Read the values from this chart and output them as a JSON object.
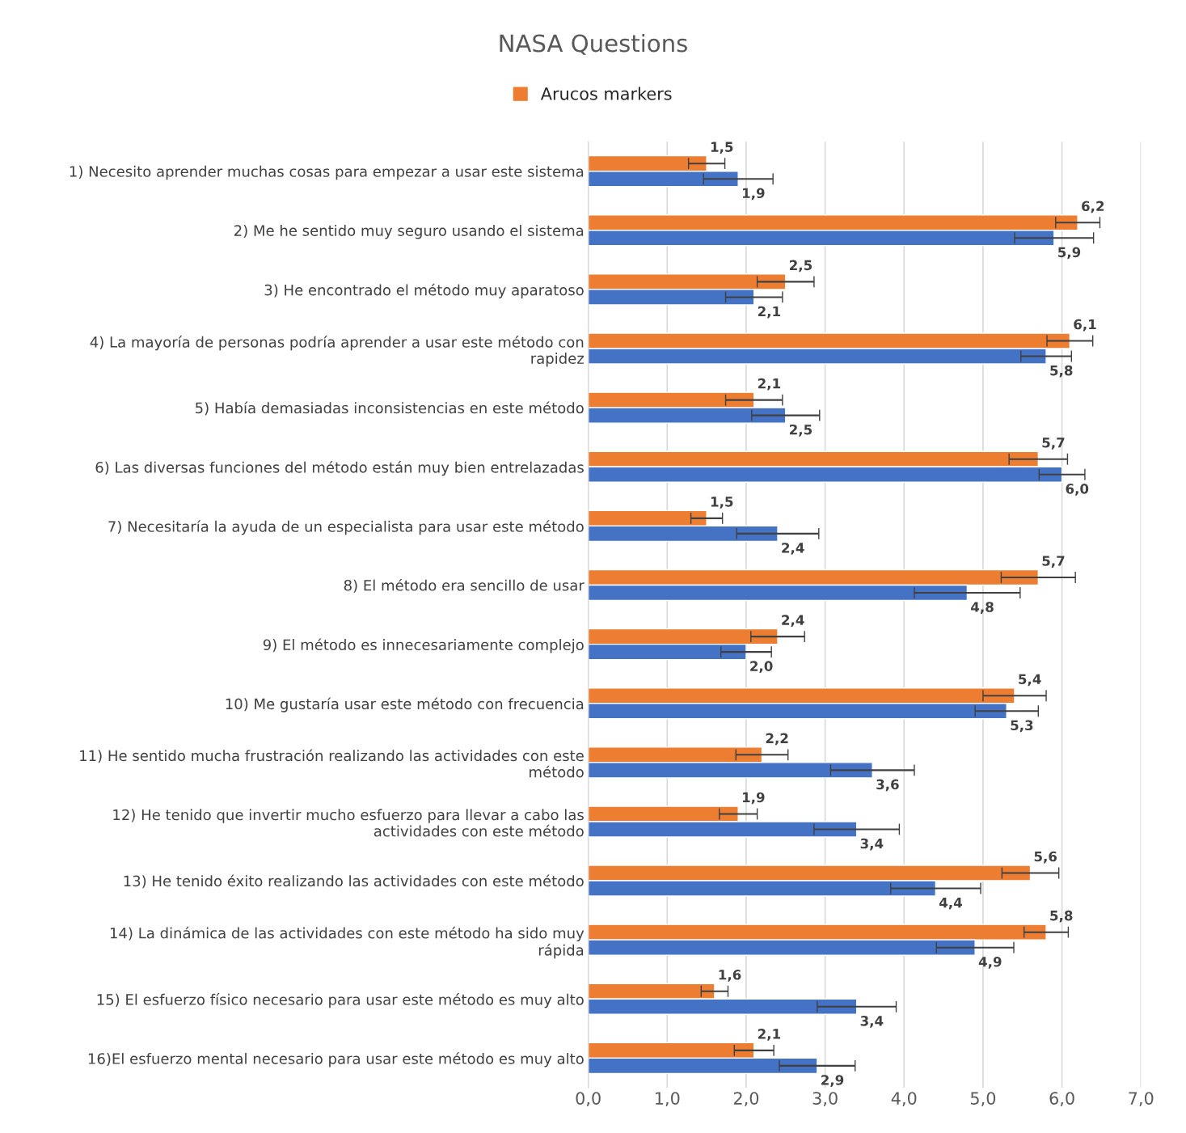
{
  "chart_data": {
    "type": "bar",
    "orientation": "horizontal",
    "title": "NASA Questions",
    "categories": [
      "1) Necesito aprender muchas cosas para empezar a usar este sistema",
      "2) Me he sentido muy seguro usando el sistema",
      "3) He encontrado el método muy aparatoso",
      "4) La mayoría de personas podría aprender a usar este método con\nrapidez",
      "5) Había demasiadas inconsistencias en este método",
      "6) Las diversas funciones del método están muy bien entrelazadas",
      "7) Necesitaría la ayuda de un especialista para usar este método",
      "8) El método era sencillo de usar",
      "9) El método es innecesariamente complejo",
      "10) Me gustaría usar este método con frecuencia",
      "11) He sentido mucha frustración realizando las actividades con este\nmétodo",
      "12) He tenido que invertir mucho esfuerzo para llevar a cabo las\nactividades con este método",
      "13) He tenido éxito realizando las actividades con este método",
      "14) La dinámica de las actividades con este método ha sido muy\nrápida",
      "15) El esfuerzo físico necesario para usar este método es muy alto",
      "16)El esfuerzo mental necesario para usar este método es muy alto"
    ],
    "series": [
      {
        "name": "Arucos markers",
        "color": "#ed7d31",
        "values": [
          1.5,
          6.2,
          2.5,
          6.1,
          2.1,
          5.7,
          1.5,
          5.7,
          2.4,
          5.4,
          2.2,
          1.9,
          5.6,
          5.8,
          1.6,
          2.1
        ],
        "errors": [
          0.23,
          0.28,
          0.36,
          0.29,
          0.36,
          0.37,
          0.2,
          0.47,
          0.34,
          0.4,
          0.33,
          0.24,
          0.36,
          0.28,
          0.17,
          0.25
        ],
        "value_labels": [
          "1,5",
          "6,2",
          "2,5",
          "6,1",
          "2,1",
          "5,7",
          "1,5",
          "5,7",
          "2,4",
          "5,4",
          "2,2",
          "1,9",
          "5,6",
          "5,8",
          "1,6",
          "2,1"
        ]
      },
      {
        "color": "#4472c4",
        "values": [
          1.9,
          5.9,
          2.1,
          5.8,
          2.5,
          6.0,
          2.4,
          4.8,
          2.0,
          5.3,
          3.6,
          3.4,
          4.4,
          4.9,
          3.4,
          2.9
        ],
        "errors": [
          0.44,
          0.5,
          0.36,
          0.32,
          0.43,
          0.29,
          0.52,
          0.67,
          0.32,
          0.4,
          0.53,
          0.54,
          0.57,
          0.49,
          0.5,
          0.48
        ],
        "value_labels": [
          "1,9",
          "5,9",
          "2,1",
          "5,8",
          "2,5",
          "6,0",
          "2,4",
          "4,8",
          "2,0",
          "5,3",
          "3,6",
          "3,4",
          "4,4",
          "4,9",
          "3,4",
          "2,9"
        ]
      }
    ],
    "xlim": [
      0,
      7
    ],
    "xticks": [
      {
        "value": 0,
        "label": "0,0"
      },
      {
        "value": 1,
        "label": "1,0"
      },
      {
        "value": 2,
        "label": "2,0"
      },
      {
        "value": 3,
        "label": "3,0"
      },
      {
        "value": 4,
        "label": "4,0"
      },
      {
        "value": 5,
        "label": "5,0"
      },
      {
        "value": 6,
        "label": "6,0"
      },
      {
        "value": 7,
        "label": "7,0"
      }
    ],
    "grid": "x",
    "legend": "top"
  }
}
